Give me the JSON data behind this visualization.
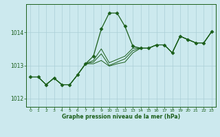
{
  "background_color": "#cce9ee",
  "grid_color": "#aacfd6",
  "line_color": "#1a5e1a",
  "xlabel": "Graphe pression niveau de la mer (hPa)",
  "xlim": [
    -0.5,
    23.5
  ],
  "ylim": [
    1011.75,
    1014.85
  ],
  "yticks": [
    1012,
    1013,
    1014
  ],
  "xticks": [
    0,
    1,
    2,
    3,
    4,
    5,
    6,
    7,
    8,
    9,
    10,
    11,
    12,
    13,
    14,
    15,
    16,
    17,
    18,
    19,
    20,
    21,
    22,
    23
  ],
  "main_series": [
    1012.65,
    1012.65,
    1012.42,
    1012.62,
    1012.42,
    1012.42,
    1012.72,
    1013.05,
    1013.28,
    1014.1,
    1014.58,
    1014.58,
    1014.18,
    1013.58,
    1013.52,
    1013.52,
    1013.62,
    1013.62,
    1013.38,
    1013.88,
    1013.78,
    1013.68,
    1013.68,
    1014.02
  ],
  "fan_lines": [
    [
      1012.65,
      1012.65,
      1012.42,
      1012.62,
      1012.42,
      1012.42,
      1012.72,
      1013.05,
      1013.15,
      1013.5,
      1013.08,
      1013.18,
      1013.28,
      1013.52,
      1013.52,
      1013.52,
      1013.62,
      1013.62,
      1013.38,
      1013.88,
      1013.78,
      1013.68,
      1013.68,
      1014.02
    ],
    [
      1012.65,
      1012.65,
      1012.42,
      1012.62,
      1012.42,
      1012.42,
      1012.72,
      1013.05,
      1013.1,
      1013.35,
      1013.0,
      1013.1,
      1013.2,
      1013.45,
      1013.52,
      1013.52,
      1013.62,
      1013.62,
      1013.38,
      1013.88,
      1013.78,
      1013.68,
      1013.68,
      1014.02
    ],
    [
      1012.65,
      1012.65,
      1012.42,
      1012.62,
      1012.42,
      1012.42,
      1012.72,
      1013.05,
      1013.05,
      1013.15,
      1012.98,
      1013.05,
      1013.1,
      1013.38,
      1013.52,
      1013.52,
      1013.62,
      1013.62,
      1013.38,
      1013.88,
      1013.78,
      1013.68,
      1013.68,
      1014.02
    ]
  ],
  "marker": "D",
  "markersize": 2.5,
  "linewidth": 0.9,
  "fan_linewidth": 0.7
}
